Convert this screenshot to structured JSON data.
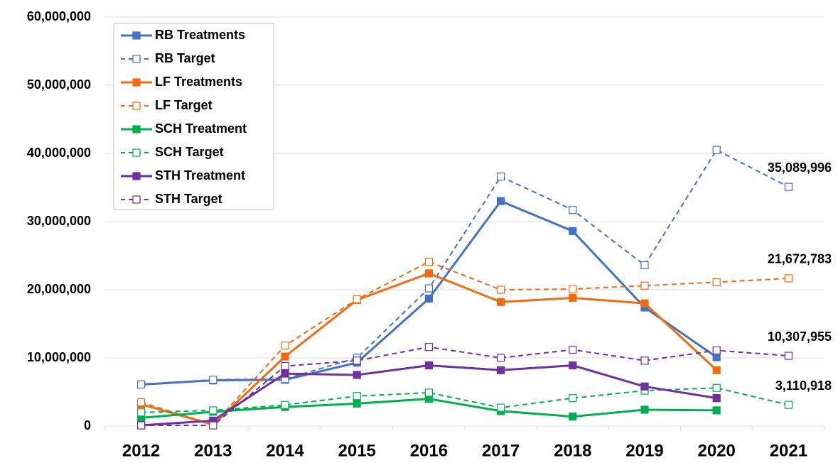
{
  "chart_data": {
    "type": "line",
    "categories": [
      "2012",
      "2013",
      "2014",
      "2015",
      "2016",
      "2017",
      "2018",
      "2019",
      "2020",
      "2021"
    ],
    "ylim": [
      0,
      60000000
    ],
    "yticks": [
      0,
      {
        "value": 10000000,
        "label": "10,000,000"
      },
      {
        "value": 20000000,
        "label": "20,000,000"
      },
      {
        "value": 30000000,
        "label": "30,000,000"
      },
      {
        "value": 40000000,
        "label": "40,000,000"
      },
      {
        "value": 50000000,
        "label": "50,000,000"
      },
      {
        "value": 60000000,
        "label": "60,000,000"
      }
    ],
    "grid": true,
    "legend": "top-left",
    "series": [
      {
        "name": "RB Treatments",
        "color": "#4472c4",
        "dashed": false,
        "marker": "filled",
        "values": [
          6100000,
          6700000,
          6800000,
          9300000,
          18700000,
          33000000,
          28600000,
          17400000,
          10100000,
          null
        ]
      },
      {
        "name": "RB Target",
        "color": "#4472c4",
        "dashed": true,
        "marker": "open",
        "values": [
          6100000,
          6800000,
          6900000,
          10000000,
          20200000,
          36600000,
          31700000,
          23600000,
          40500000,
          35089996
        ],
        "value_labels": [
          null,
          null,
          null,
          null,
          null,
          null,
          null,
          null,
          null,
          "35,089,996"
        ]
      },
      {
        "name": "LF Treatments",
        "color": "#f26b12",
        "dashed": false,
        "marker": "filled",
        "values": [
          3200000,
          200000,
          10200000,
          18500000,
          22400000,
          18200000,
          18800000,
          18000000,
          8200000,
          null
        ]
      },
      {
        "name": "LF Target",
        "color": "#f26b12",
        "dashed": true,
        "marker": "open",
        "values": [
          3500000,
          200000,
          11800000,
          18600000,
          24100000,
          20000000,
          20100000,
          20600000,
          21100000,
          21672783
        ],
        "value_labels": [
          null,
          null,
          null,
          null,
          null,
          null,
          null,
          null,
          null,
          "21,672,783"
        ]
      },
      {
        "name": "SCH Treatment",
        "color": "#00b050",
        "dashed": false,
        "marker": "filled",
        "values": [
          1200000,
          2100000,
          2800000,
          3300000,
          4000000,
          2200000,
          1400000,
          2400000,
          2300000,
          null
        ]
      },
      {
        "name": "SCH Target",
        "color": "#00b050",
        "dashed": true,
        "marker": "open",
        "values": [
          2000000,
          2300000,
          3100000,
          4400000,
          4900000,
          2700000,
          4100000,
          5200000,
          5600000,
          3110918
        ],
        "value_labels": [
          null,
          null,
          null,
          null,
          null,
          null,
          null,
          null,
          null,
          "3,110,918"
        ]
      },
      {
        "name": "STH Treatment",
        "color": "#7030a0",
        "dashed": false,
        "marker": "filled",
        "values": [
          100000,
          800000,
          7700000,
          7500000,
          8900000,
          8200000,
          8900000,
          5800000,
          4100000,
          null
        ]
      },
      {
        "name": "STH Target",
        "color": "#7030a0",
        "dashed": true,
        "marker": "open",
        "values": [
          100000,
          100000,
          8800000,
          9600000,
          11600000,
          10000000,
          11200000,
          9600000,
          11100000,
          10307955
        ],
        "value_labels": [
          null,
          null,
          null,
          null,
          null,
          null,
          null,
          null,
          null,
          "10,307,955"
        ]
      }
    ]
  }
}
